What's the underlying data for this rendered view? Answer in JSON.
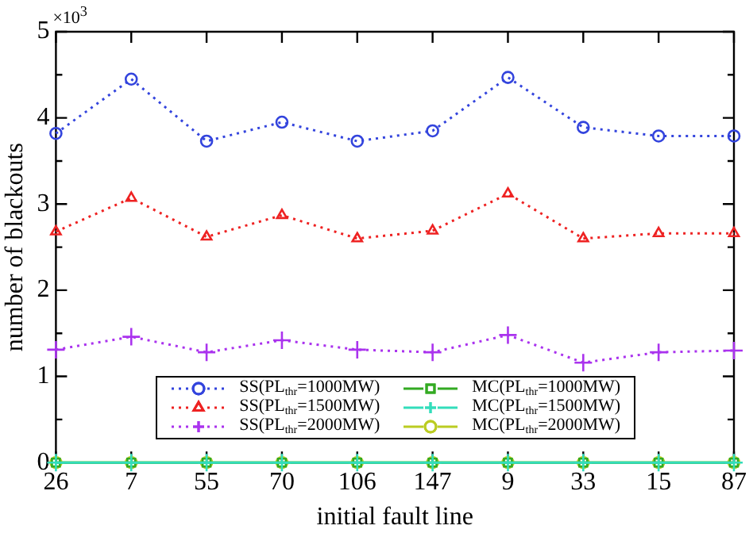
{
  "chart_data": {
    "type": "line",
    "xlabel": "initial fault line",
    "ylabel": "number of blackouts",
    "annotations": [
      "×10$^{3}$"
    ],
    "categories": [
      "26",
      "7",
      "55",
      "70",
      "106",
      "147",
      "9",
      "33",
      "15",
      "87"
    ],
    "ylim": [
      0,
      5
    ],
    "yticks": [
      0,
      {
        "value": 0.5,
        "label": null
      },
      1,
      {
        "value": 1.5,
        "label": null
      },
      2,
      {
        "value": 2.5,
        "label": null
      },
      3,
      {
        "value": 3.5,
        "label": null
      },
      4,
      {
        "value": 4.5,
        "label": null
      },
      5
    ],
    "grid": false,
    "legend": "bottom",
    "series": [
      {
        "name": "SS(PL$_{thr}$=1000MW)",
        "color": "#3344dd",
        "marker": "circle",
        "line_style": "dotted",
        "values": [
          3.82,
          4.45,
          3.73,
          3.95,
          3.73,
          3.85,
          4.47,
          3.89,
          3.79,
          3.79
        ]
      },
      {
        "name": "SS(PL$_{thr}$=1500MW)",
        "color": "#ee2222",
        "marker": "triangle",
        "line_style": "dotted",
        "values": [
          2.68,
          3.07,
          2.62,
          2.87,
          2.6,
          2.69,
          3.12,
          2.6,
          2.66,
          2.66
        ]
      },
      {
        "name": "SS(PL$_{thr}$=2000MW)",
        "color": "#aa33ee",
        "marker": "cross",
        "line_style": "dotted",
        "values": [
          1.31,
          1.46,
          1.28,
          1.42,
          1.31,
          1.28,
          1.48,
          1.16,
          1.28,
          1.3
        ]
      },
      {
        "name": "MC(PL$_{thr}$=1000MW)",
        "color": "#33aa22",
        "marker": "square",
        "line_style": "solid",
        "values": [
          0,
          0,
          0,
          0,
          0,
          0,
          0,
          0,
          0,
          0
        ]
      },
      {
        "name": "MC(PL$_{thr}$=1500MW)",
        "color": "#33ddbb",
        "marker": "cross",
        "line_style": "solid",
        "values": [
          0,
          0,
          0,
          0,
          0,
          0,
          0,
          0,
          0,
          0
        ]
      },
      {
        "name": "MC(PL$_{thr}$=2000MW)",
        "color": "#bbcc22",
        "marker": "circle",
        "line_style": "solid",
        "values": [
          0,
          0,
          0,
          0,
          0,
          0,
          0,
          0,
          0,
          0
        ]
      }
    ]
  }
}
